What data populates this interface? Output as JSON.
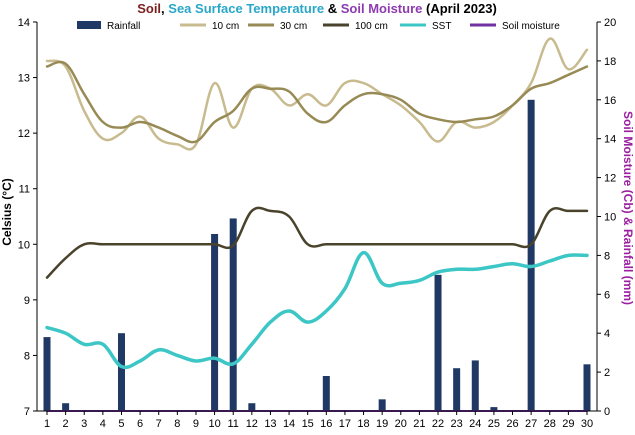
{
  "colors": {
    "title_soil": "#7b1f1f",
    "title_sst": "#2aa7c7",
    "title_moisture": "#8e3bb0",
    "title_plain": "#000000",
    "rainfall": "#1f3864",
    "cm10": "#c8bb8f",
    "cm30": "#978a55",
    "cm100": "#4a432c",
    "sst": "#3cc6c6",
    "soil_moisture": "#7030a0",
    "y2_axis": "#9b1fa0"
  },
  "chart_data": {
    "type": "bar+line",
    "title_parts": [
      {
        "text": "Soil",
        "color_key": "title_soil"
      },
      {
        "text": ", ",
        "color_key": "title_plain"
      },
      {
        "text": "Sea Surface Temperature",
        "color_key": "title_sst"
      },
      {
        "text": " & ",
        "color_key": "title_plain"
      },
      {
        "text": "Soil Moisture",
        "color_key": "title_moisture"
      },
      {
        "text": " (April 2023)",
        "color_key": "title_plain"
      }
    ],
    "ylabel": "Celsius (°C)",
    "y2label": "Soil Moisture (Cb) & Rainfall (mm)",
    "xlim": [
      1,
      30
    ],
    "ylim": [
      7,
      14
    ],
    "y2lim": [
      0,
      20
    ],
    "x": [
      1,
      2,
      3,
      4,
      5,
      6,
      7,
      8,
      9,
      10,
      11,
      12,
      13,
      14,
      15,
      16,
      17,
      18,
      19,
      20,
      21,
      22,
      23,
      24,
      25,
      26,
      27,
      28,
      29,
      30
    ],
    "x_ticks": [
      "1",
      "2",
      "3",
      "4",
      "5",
      "6",
      "7",
      "8",
      "9",
      "10",
      "11",
      "12",
      "13",
      "14",
      "15",
      "16",
      "17",
      "18",
      "19",
      "20",
      "21",
      "22",
      "23",
      "24",
      "25",
      "26",
      "27",
      "28",
      "29",
      "30"
    ],
    "y_ticks": [
      "7",
      "8",
      "9",
      "10",
      "11",
      "12",
      "13",
      "14"
    ],
    "y2_ticks": [
      "0",
      "2",
      "4",
      "6",
      "8",
      "10",
      "12",
      "14",
      "16",
      "18",
      "20"
    ],
    "legend": {
      "placement": "top",
      "entries": [
        {
          "label": "Rainfall",
          "kind": "bar",
          "color_key": "rainfall"
        },
        {
          "label": "10 cm",
          "kind": "line",
          "color_key": "cm10"
        },
        {
          "label": "30 cm",
          "kind": "line",
          "color_key": "cm30"
        },
        {
          "label": "100 cm",
          "kind": "line",
          "color_key": "cm100"
        },
        {
          "label": "SST",
          "kind": "line",
          "color_key": "sst"
        },
        {
          "label": "Soil moisture",
          "kind": "line",
          "color_key": "soil_moisture"
        }
      ]
    },
    "series": [
      {
        "name": "Rainfall",
        "axis": "right",
        "type": "bar",
        "color_key": "rainfall",
        "values": [
          3.8,
          0.4,
          0,
          0,
          4.0,
          0,
          0,
          0,
          0,
          9.1,
          9.9,
          0.4,
          0,
          0,
          0,
          1.8,
          0,
          0,
          0.6,
          0,
          0,
          7.0,
          2.2,
          2.6,
          0.2,
          0,
          16.0,
          0,
          0,
          2.4
        ]
      },
      {
        "name": "10 cm",
        "axis": "left",
        "type": "line",
        "color_key": "cm10",
        "values": [
          13.3,
          13.2,
          12.4,
          11.9,
          12.0,
          12.3,
          11.9,
          11.8,
          11.8,
          12.9,
          12.1,
          12.8,
          12.8,
          12.5,
          12.7,
          12.5,
          12.9,
          12.9,
          12.7,
          12.5,
          12.2,
          11.85,
          12.2,
          12.1,
          12.2,
          12.5,
          12.9,
          13.7,
          13.15,
          13.5
        ]
      },
      {
        "name": "30 cm",
        "axis": "left",
        "type": "line",
        "color_key": "cm30",
        "values": [
          13.2,
          13.25,
          12.7,
          12.2,
          12.1,
          12.2,
          12.1,
          11.95,
          11.85,
          12.2,
          12.4,
          12.8,
          12.8,
          12.75,
          12.35,
          12.2,
          12.5,
          12.7,
          12.7,
          12.6,
          12.35,
          12.25,
          12.2,
          12.25,
          12.3,
          12.5,
          12.8,
          12.9,
          13.05,
          13.2
        ]
      },
      {
        "name": "100 cm",
        "axis": "left",
        "type": "line",
        "color_key": "cm100",
        "values": [
          9.4,
          9.75,
          10.0,
          10.0,
          10.0,
          10.0,
          10.0,
          10.0,
          10.0,
          10.0,
          9.98,
          10.6,
          10.6,
          10.5,
          10.0,
          10.0,
          10.0,
          10.0,
          10.0,
          10.0,
          10.0,
          10.0,
          10.0,
          10.0,
          10.0,
          10.0,
          10.0,
          10.6,
          10.6,
          10.6
        ]
      },
      {
        "name": "SST",
        "axis": "left",
        "type": "line",
        "color_key": "sst",
        "values": [
          8.5,
          8.4,
          8.2,
          8.2,
          7.8,
          7.9,
          8.1,
          8.0,
          7.9,
          7.95,
          7.85,
          8.2,
          8.6,
          8.8,
          8.6,
          8.8,
          9.2,
          9.85,
          9.3,
          9.3,
          9.35,
          9.5,
          9.55,
          9.55,
          9.6,
          9.65,
          9.6,
          9.7,
          9.8,
          9.8
        ]
      },
      {
        "name": "Soil moisture",
        "axis": "right",
        "type": "line",
        "color_key": "soil_moisture",
        "values": [
          0,
          0,
          0,
          0,
          0,
          0,
          0,
          0,
          0,
          0,
          0,
          0,
          0,
          0,
          0,
          0,
          0,
          0,
          0,
          0,
          0,
          0,
          0,
          0,
          0,
          0,
          0,
          0,
          0,
          0
        ]
      }
    ]
  }
}
